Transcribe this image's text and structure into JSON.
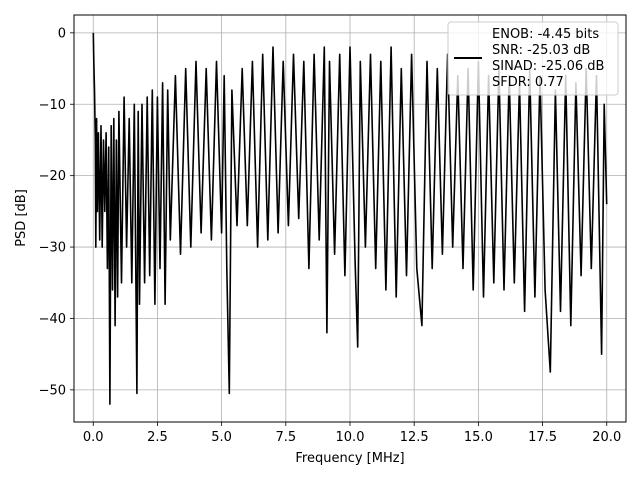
{
  "chart_data": {
    "type": "line",
    "xlabel": "Frequency [MHz]",
    "ylabel": "PSD [dB]",
    "xlim": [
      -0.75,
      20.75
    ],
    "ylim": [
      -54.5,
      2.5
    ],
    "xticks": [
      0.0,
      2.5,
      5.0,
      7.5,
      10.0,
      12.5,
      15.0,
      17.5,
      20.0
    ],
    "xtick_labels": [
      "0.0",
      "2.5",
      "5.0",
      "7.5",
      "10.0",
      "12.5",
      "15.0",
      "17.5",
      "20.0"
    ],
    "yticks": [
      0,
      -10,
      -20,
      -30,
      -40,
      -50
    ],
    "ytick_labels": [
      "0",
      "−10",
      "−20",
      "−30",
      "−40",
      "−50"
    ],
    "grid": true,
    "legend_position": "top-right",
    "series": [
      {
        "name": "ENOB: -4.45 bits\nSNR: -25.03 dB\nSINAD: -25.06 dB\nSFDR: 0.77",
        "legend_lines": [
          "ENOB: -4.45 bits",
          "SNR: -25.03 dB",
          "SINAD: -25.06 dB",
          "SFDR: 0.77"
        ],
        "color": "#000000",
        "x": [
          0.0,
          0.02,
          0.05,
          0.08,
          0.1,
          0.13,
          0.16,
          0.2,
          0.25,
          0.3,
          0.35,
          0.4,
          0.45,
          0.5,
          0.55,
          0.6,
          0.65,
          0.7,
          0.75,
          0.8,
          0.85,
          0.9,
          0.95,
          1.0,
          1.1,
          1.2,
          1.3,
          1.4,
          1.5,
          1.6,
          1.7,
          1.75,
          1.8,
          1.9,
          2.0,
          2.1,
          2.2,
          2.3,
          2.4,
          2.5,
          2.6,
          2.7,
          2.8,
          2.9,
          3.0,
          3.2,
          3.4,
          3.6,
          3.8,
          4.0,
          4.2,
          4.4,
          4.6,
          4.8,
          5.0,
          5.1,
          5.2,
          5.3,
          5.4,
          5.6,
          5.8,
          6.0,
          6.2,
          6.4,
          6.6,
          6.8,
          7.0,
          7.2,
          7.4,
          7.6,
          7.8,
          8.0,
          8.2,
          8.4,
          8.6,
          8.8,
          9.0,
          9.1,
          9.2,
          9.4,
          9.6,
          9.8,
          10.0,
          10.2,
          10.3,
          10.4,
          10.6,
          10.8,
          11.0,
          11.2,
          11.4,
          11.6,
          11.8,
          12.0,
          12.2,
          12.4,
          12.6,
          12.8,
          13.0,
          13.2,
          13.4,
          13.6,
          13.8,
          14.0,
          14.2,
          14.4,
          14.6,
          14.8,
          15.0,
          15.2,
          15.4,
          15.6,
          15.8,
          16.0,
          16.2,
          16.4,
          16.6,
          16.8,
          17.0,
          17.2,
          17.4,
          17.6,
          17.8,
          18.0,
          18.2,
          18.4,
          18.6,
          18.8,
          19.0,
          19.2,
          19.4,
          19.6,
          19.8,
          19.9,
          20.0
        ],
        "y": [
          0.0,
          -4.0,
          -8.0,
          -15.0,
          -30.0,
          -12.0,
          -25.0,
          -14.0,
          -29.0,
          -13.0,
          -30.0,
          -15.0,
          -25.0,
          -14.0,
          -33.0,
          -16.0,
          -52.0,
          -13.0,
          -36.0,
          -12.0,
          -41.0,
          -15.0,
          -37.0,
          -11.0,
          -35.0,
          -9.0,
          -30.0,
          -12.0,
          -35.0,
          -10.0,
          -50.5,
          -11.0,
          -38.0,
          -10.0,
          -35.0,
          -9.0,
          -34.0,
          -8.0,
          -38.0,
          -9.0,
          -33.0,
          -7.0,
          -38.0,
          -8.0,
          -29.0,
          -6.0,
          -31.0,
          -5.0,
          -30.0,
          -4.0,
          -28.0,
          -5.0,
          -29.0,
          -4.0,
          -28.0,
          -6.0,
          -33.0,
          -50.5,
          -8.0,
          -27.0,
          -5.0,
          -27.0,
          -4.0,
          -30.0,
          -3.0,
          -29.0,
          -2.0,
          -28.0,
          -4.0,
          -27.0,
          -3.0,
          -26.0,
          -4.0,
          -33.0,
          -3.0,
          -29.0,
          -2.0,
          -42.0,
          -4.0,
          -31.0,
          -3.0,
          -34.0,
          -2.0,
          -32.0,
          -44.0,
          -4.0,
          -30.0,
          -3.0,
          -33.0,
          -4.0,
          -36.0,
          -2.0,
          -37.0,
          -5.0,
          -34.0,
          -3.0,
          -33.0,
          -41.0,
          -4.0,
          -33.0,
          -5.0,
          -31.0,
          -3.0,
          -30.0,
          -6.0,
          -33.0,
          -5.0,
          -36.0,
          -4.0,
          -37.0,
          -6.0,
          -35.0,
          -5.0,
          -36.0,
          -6.0,
          -35.0,
          -7.0,
          -39.0,
          -5.0,
          -37.0,
          -6.0,
          -36.0,
          -47.5,
          -8.0,
          -39.0,
          -6.0,
          -41.0,
          -7.0,
          -34.0,
          -5.0,
          -33.0,
          -6.0,
          -45.0,
          -10.0,
          -24.0
        ]
      }
    ]
  }
}
